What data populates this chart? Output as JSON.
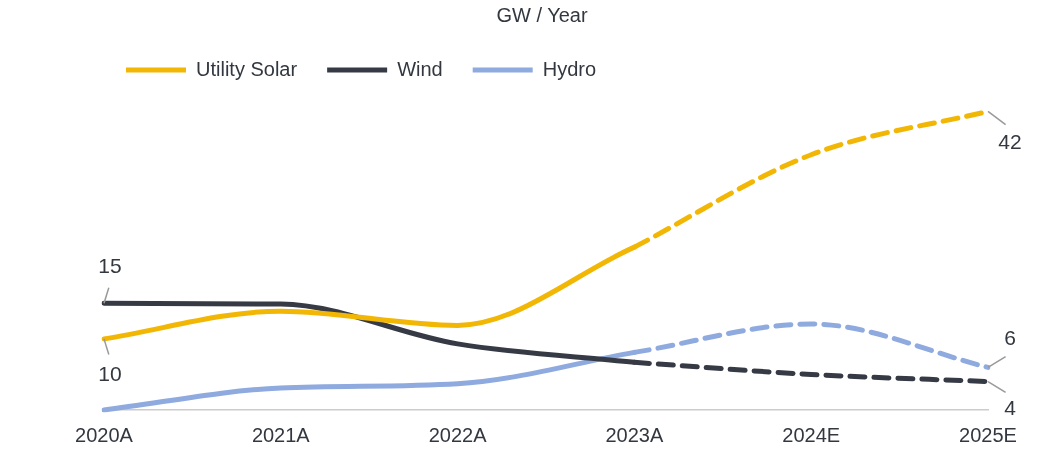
{
  "chart_data": {
    "type": "line",
    "title": "GW / Year",
    "categories": [
      "2020A",
      "2021A",
      "2022A",
      "2023A",
      "2024E",
      "2025E"
    ],
    "series": [
      {
        "name": "Utility Solar",
        "color": "#f2b705",
        "line_style": "solid",
        "values": [
          10,
          13.9,
          11.9,
          22.9,
          null,
          null
        ],
        "value_labels": [
          "10",
          null,
          null,
          null,
          null,
          null
        ]
      },
      {
        "name": "Wind",
        "color": "#363a45",
        "line_style": "solid",
        "values": [
          15,
          14.9,
          9.3,
          6.7,
          null,
          null
        ],
        "value_labels": [
          "15",
          null,
          null,
          null,
          null,
          null
        ]
      },
      {
        "name": "Hydro",
        "color": "#8eaadf",
        "line_style": "solid",
        "values": [
          0,
          3.1,
          3.7,
          8.1,
          null,
          null
        ]
      },
      {
        "color": "#f2b705",
        "line_style": "dashed",
        "values": [
          null,
          null,
          null,
          22.9,
          35.9,
          42
        ],
        "value_labels": [
          null,
          null,
          null,
          null,
          null,
          "42"
        ]
      },
      {
        "color": "#363a45",
        "line_style": "dashed",
        "values": [
          null,
          null,
          null,
          6.7,
          5.0,
          4
        ],
        "value_labels": [
          null,
          null,
          null,
          null,
          null,
          "4"
        ]
      },
      {
        "color": "#8eaadf",
        "line_style": "dashed",
        "values": [
          null,
          null,
          null,
          8.1,
          12.1,
          6
        ],
        "value_labels": [
          null,
          null,
          null,
          null,
          null,
          "6"
        ]
      }
    ],
    "tick_labels": "x",
    "grid": false,
    "legend": "top left",
    "marker": "none"
  }
}
